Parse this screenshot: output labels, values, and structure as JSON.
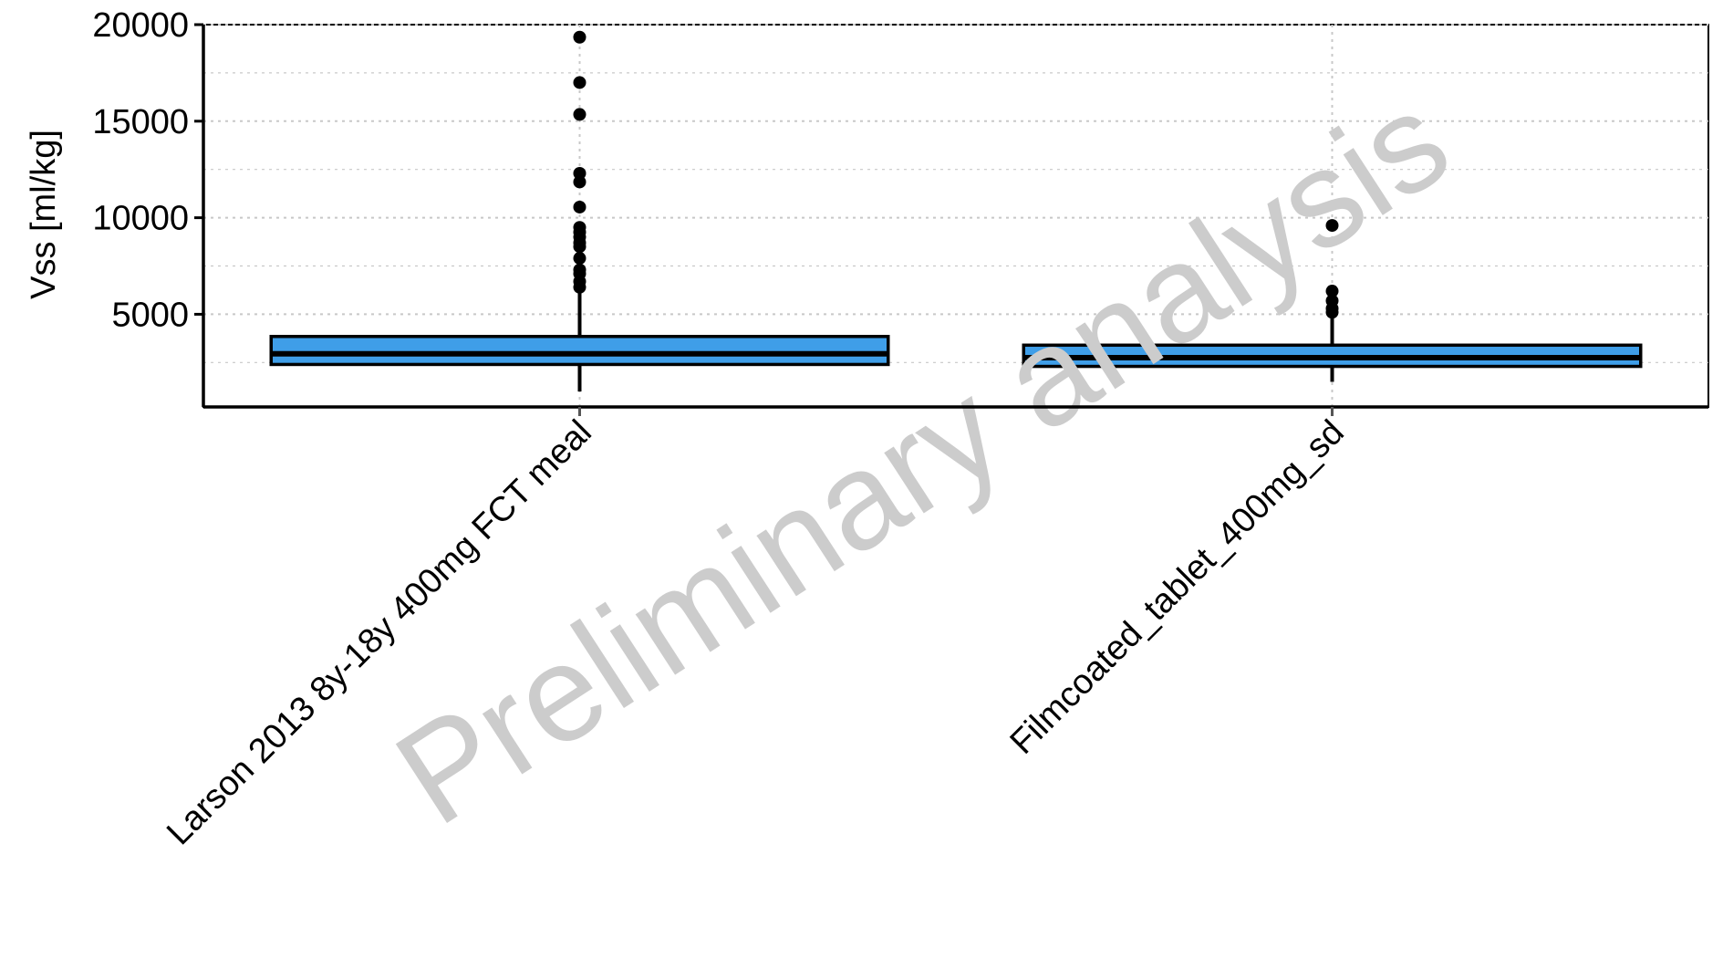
{
  "chart_data": {
    "type": "boxplot",
    "title": "",
    "xlabel": "",
    "ylabel": "Vss [ml/kg]",
    "ylim": [
      200,
      20000
    ],
    "yticks": [
      5000,
      10000,
      15000,
      20000
    ],
    "grid": true,
    "legend": "none",
    "watermark": "Preliminary analysis",
    "colors": {
      "box_fill": "#3f9ee8",
      "box_stroke": "#000000",
      "grid": "#c8c8c8"
    },
    "categories": [
      "Larson 2013 8y-18y 400mg FCT meal",
      "Filmcoated_tablet_400mg_sd"
    ],
    "boxes": [
      {
        "category": "Larson 2013 8y-18y 400mg FCT meal",
        "whisker_low": 1000,
        "q1": 2400,
        "median": 2950,
        "q3": 3850,
        "whisker_high": 6300,
        "outliers": [
          19350,
          17000,
          15350,
          12300,
          11850,
          10550,
          9500,
          9250,
          9000,
          8700,
          8500,
          7900,
          7300,
          7100,
          6700,
          6400
        ]
      },
      {
        "category": "Filmcoated_tablet_400mg_sd",
        "whisker_low": 1500,
        "q1": 2300,
        "median": 2750,
        "q3": 3400,
        "whisker_high": 4900,
        "outliers": [
          9600,
          6200,
          5700,
          5300,
          5100
        ]
      }
    ]
  }
}
